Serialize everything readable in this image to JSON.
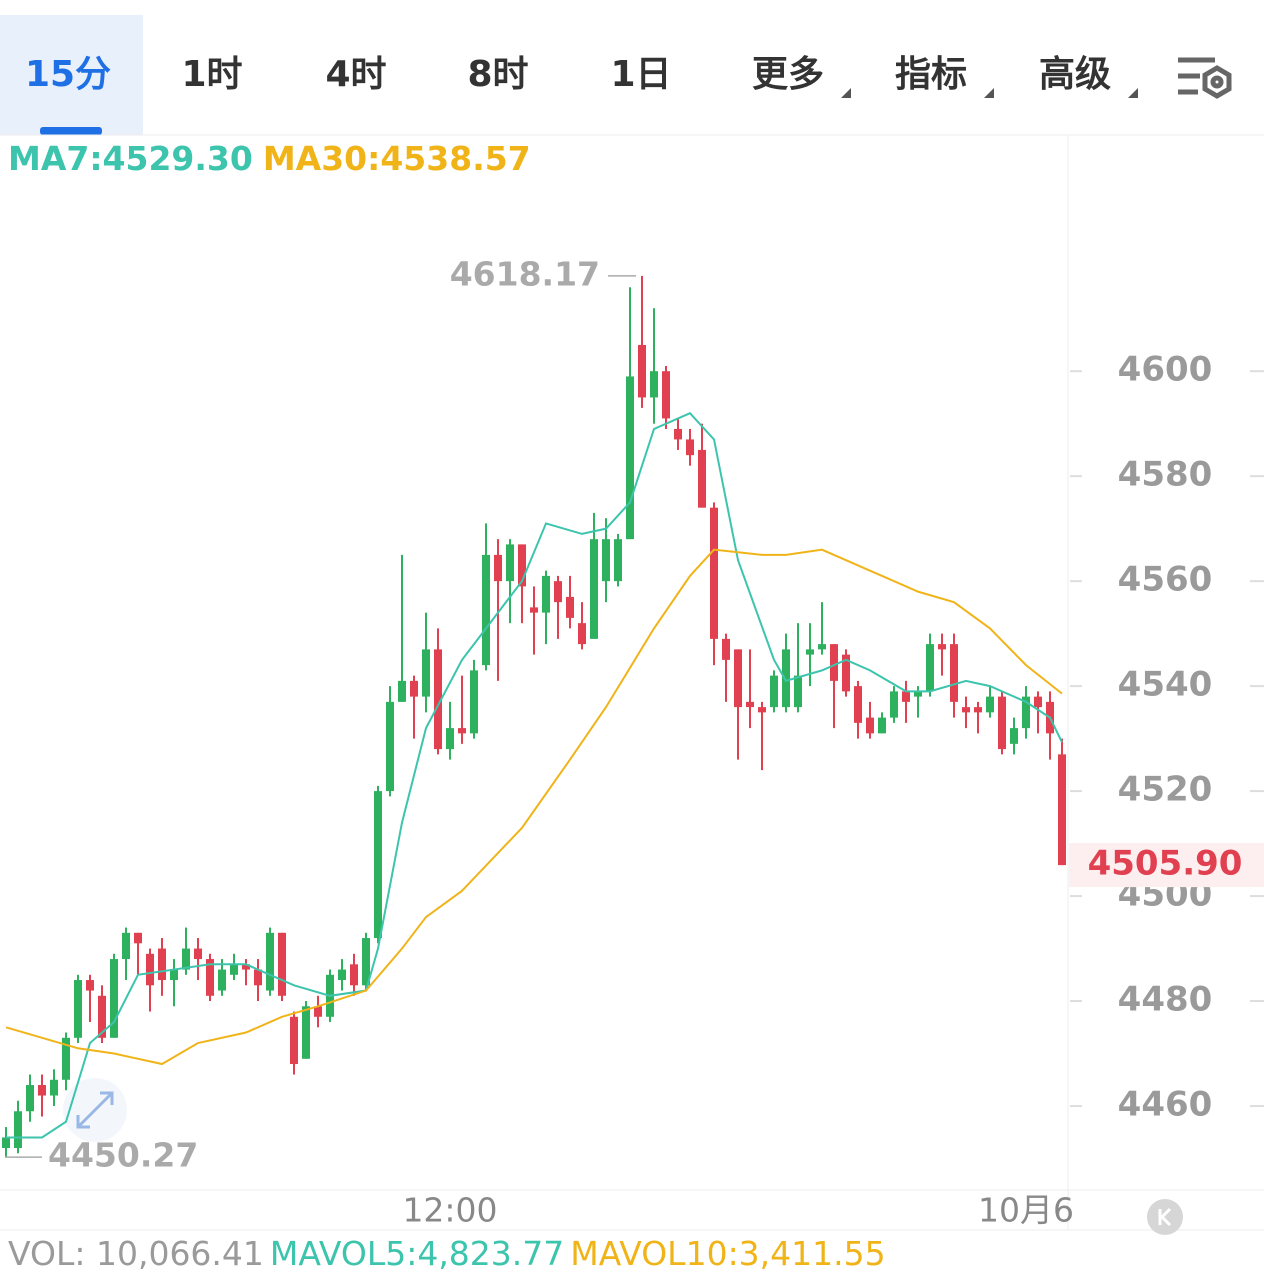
{
  "tabs": {
    "items": [
      "15分",
      "1时",
      "4时",
      "8时",
      "1日",
      "更多",
      "指标",
      "高级"
    ],
    "active": 0
  },
  "chart_data": {
    "type": "candlestick",
    "ma_legend": [
      {
        "text": "MA7:4529.30",
        "color": "#3cc4ad"
      },
      {
        "text": "MA30:4538.57",
        "color": "#f0b419"
      }
    ],
    "candles": {
      "open": [
        4452,
        4452,
        4459,
        4464,
        4462,
        4465,
        4473,
        4484,
        4481,
        4473,
        4488,
        4493,
        4489,
        4490,
        4484,
        4486,
        4490,
        4488,
        4482,
        4485,
        4487,
        4486,
        4482,
        4493,
        4477,
        4469,
        4479,
        4477,
        4484,
        4487,
        4483,
        4492,
        4520,
        4537,
        4541,
        4538,
        4547,
        4528,
        4532,
        4531,
        4544,
        4565,
        4560,
        4567,
        4555,
        4554,
        4560,
        4557,
        4552,
        4549,
        4560,
        4560,
        4568,
        4605,
        4595,
        4600,
        4589,
        4587,
        4585,
        4574,
        4549,
        4547,
        4537,
        4536,
        4536,
        4536,
        4536,
        4546,
        4547,
        4548,
        4546,
        4540,
        4534,
        4531,
        4534,
        4539,
        4538,
        4539,
        4548,
        4548,
        4536,
        4536,
        4535,
        4538,
        4529,
        4532,
        4538,
        4537,
        4527
      ],
      "high": [
        4456,
        4461,
        4466,
        4466,
        4467,
        4474,
        4485,
        4485,
        4483,
        4489,
        4494,
        4493,
        4490,
        4492,
        4488,
        4494,
        4492,
        4489,
        4488,
        4489,
        4488,
        4488,
        4494,
        4493,
        4478,
        4480,
        4481,
        4486,
        4488,
        4489,
        4493,
        4521,
        4540,
        4565,
        4542,
        4554,
        4551,
        4537,
        4542,
        4545,
        4571,
        4568,
        4568,
        4567,
        4559,
        4562,
        4561,
        4561,
        4556,
        4573,
        4572,
        4569,
        4616,
        4618.17,
        4612,
        4601,
        4591,
        4589,
        4590,
        4575,
        4550,
        4547,
        4547,
        4537,
        4543,
        4550,
        4552,
        4552,
        4556,
        4548,
        4547,
        4541,
        4537,
        4535,
        4540,
        4541,
        4540,
        4550,
        4550,
        4550,
        4538,
        4537,
        4540,
        4539,
        4534,
        4540,
        4539,
        4539,
        4530
      ],
      "low": [
        4450.27,
        4451,
        4457,
        4458,
        4460,
        4463,
        4472,
        4476,
        4472,
        4473,
        4484,
        4485,
        4478,
        4481,
        4479,
        4485,
        4484,
        4480,
        4481,
        4484,
        4483,
        4480,
        4481,
        4480,
        4466,
        4469,
        4475,
        4476,
        4482,
        4481,
        4482,
        4491,
        4519,
        4537,
        4530,
        4535,
        4527,
        4526,
        4529,
        4530,
        4543,
        4541,
        4552,
        4552,
        4546,
        4548,
        4549,
        4551,
        4547,
        4549,
        4556,
        4559,
        4568,
        4593,
        4590,
        4589,
        4585,
        4582,
        4574,
        4544,
        4537,
        4526,
        4532,
        4524,
        4535,
        4535,
        4535,
        4540,
        4546,
        4532,
        4538,
        4530,
        4530,
        4531,
        4533,
        4533,
        4534,
        4538,
        4542,
        4534,
        4532,
        4531,
        4534,
        4527,
        4527,
        4530,
        4531,
        4526,
        4505.9
      ],
      "close": [
        4454,
        4459,
        4464,
        4462,
        4465,
        4473,
        4484,
        4482,
        4473,
        4488,
        4493,
        4491,
        4483,
        4484,
        4486,
        4490,
        4488,
        4481,
        4486,
        4487,
        4486,
        4483,
        4493,
        4481,
        4468,
        4479,
        4477,
        4485,
        4486,
        4483,
        4492,
        4520,
        4537,
        4541,
        4538,
        4547,
        4528,
        4532,
        4531,
        4543,
        4565,
        4560,
        4567,
        4559,
        4554,
        4561,
        4556,
        4553,
        4548,
        4568,
        4568,
        4568,
        4599,
        4595,
        4600,
        4591,
        4587,
        4584,
        4574,
        4549,
        4545,
        4536,
        4536,
        4535,
        4542,
        4547,
        4542,
        4547,
        4548,
        4541,
        4539,
        4533,
        4531,
        4534,
        4539,
        4537,
        4539,
        4548,
        4547,
        4537,
        4535,
        4535,
        4538,
        4528,
        4532,
        4538,
        4536,
        4531,
        4505.9
      ]
    },
    "ma": [
      {
        "name": "MA7",
        "color": "#3cc4ad",
        "x": [
          0,
          3,
          5,
          7,
          9,
          11,
          14,
          17,
          20,
          24,
          27,
          30,
          31,
          33,
          35,
          38,
          40,
          43,
          45,
          48,
          50,
          52,
          54,
          57,
          59,
          61,
          64,
          65,
          68,
          70,
          72,
          75,
          77,
          80,
          82,
          85,
          87,
          88
        ],
        "values": [
          4454,
          4454,
          4457,
          4472,
          4476,
          4485,
          4486,
          4487,
          4487,
          4483,
          4481,
          4482,
          4490,
          4514,
          4532,
          4545,
          4551,
          4560,
          4571,
          4569,
          4570,
          4575,
          4589,
          4592,
          4587,
          4564,
          4545,
          4541,
          4543,
          4545,
          4543,
          4539,
          4539,
          4541,
          4540,
          4537,
          4534,
          4529.3
        ]
      },
      {
        "name": "MA30",
        "color": "#f0b419",
        "x": [
          0,
          3,
          6,
          9,
          13,
          16,
          20,
          23,
          26,
          30,
          33,
          35,
          38,
          43,
          47,
          50,
          54,
          57,
          59,
          63,
          65,
          68,
          72,
          76,
          79,
          82,
          85,
          88
        ],
        "values": [
          4475,
          4473,
          4471,
          4470,
          4468,
          4472,
          4474,
          4477,
          4479,
          4482,
          4490,
          4496,
          4501,
          4513,
          4526,
          4536,
          4551,
          4561,
          4566,
          4565,
          4565,
          4566,
          4562,
          4558,
          4556,
          4551,
          4544,
          4538.57
        ]
      }
    ],
    "up_color": "#2eb15f",
    "down_color": "#e0404f",
    "ylim": [
      4444,
      4645
    ],
    "yticks": [
      4460,
      4480,
      4500,
      4520,
      4540,
      4560,
      4580,
      4600
    ],
    "xticks": [
      {
        "value": 37,
        "label": "12:00"
      },
      {
        "value": 85,
        "label": "10月6"
      }
    ],
    "max_label": 4618.17,
    "min_label": 4450.27,
    "last_price": {
      "value": 4505.9,
      "label": "4505.90"
    },
    "volume_legend": [
      {
        "text": "VOL: 10,066.41",
        "color": "#9a9a9a"
      },
      {
        "text": "MAVOL5:4,823.77",
        "color": "#3cc4ad"
      },
      {
        "text": "MAVOL10:3,411.55",
        "color": "#f0b419"
      }
    ]
  }
}
